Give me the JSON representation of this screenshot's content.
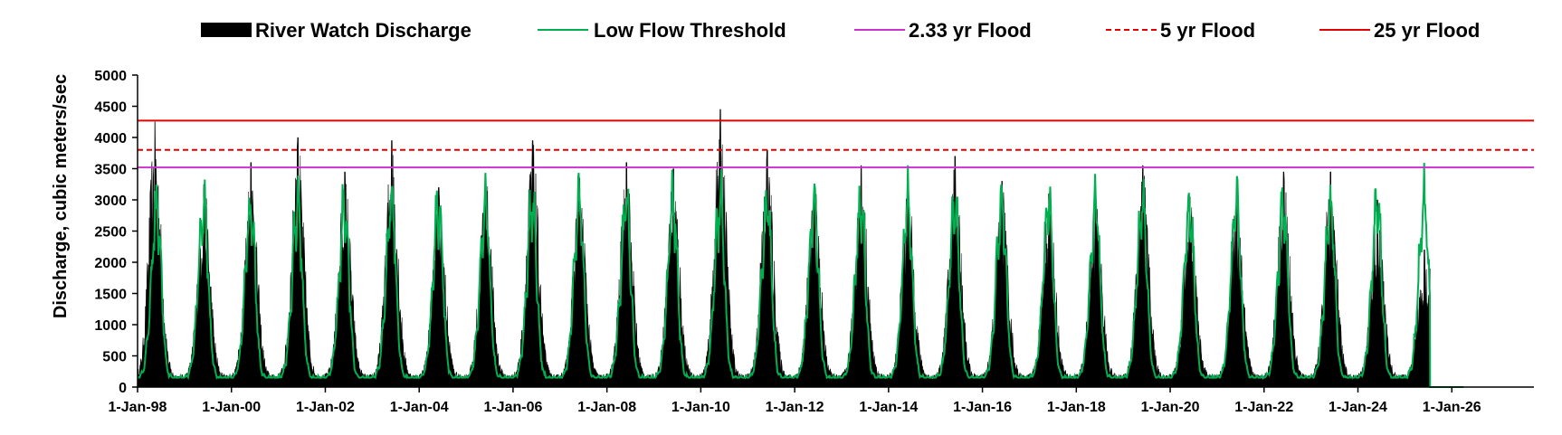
{
  "chart_data": {
    "type": "area",
    "title": "",
    "xlabel": "",
    "ylabel": "Discharge, cubic meters/sec",
    "ylim": [
      0,
      5000
    ],
    "y_ticks": [
      0,
      500,
      1000,
      1500,
      2000,
      2500,
      3000,
      3500,
      4000,
      4500,
      5000
    ],
    "y_tick_labels": [
      "0",
      "500",
      "1000",
      "1500",
      "2000",
      "2500",
      "3000",
      "3500",
      "4000",
      "4500",
      "5000"
    ],
    "xlim": [
      "1998-01-01",
      "2027-10-01"
    ],
    "x_ticks": [
      "1998-01-01",
      "2000-01-01",
      "2002-01-01",
      "2004-01-01",
      "2006-01-01",
      "2008-01-01",
      "2010-01-01",
      "2012-01-01",
      "2014-01-01",
      "2016-01-01",
      "2018-01-01",
      "2020-01-01",
      "2022-01-01",
      "2024-01-01",
      "2026-01-01"
    ],
    "x_tick_labels": [
      "1-Jan-98",
      "1-Jan-00",
      "1-Jan-02",
      "1-Jan-04",
      "1-Jan-06",
      "1-Jan-08",
      "1-Jan-10",
      "1-Jan-12",
      "1-Jan-14",
      "1-Jan-16",
      "1-Jan-18",
      "1-Jan-20",
      "1-Jan-22",
      "1-Jan-24",
      "1-Jan-26"
    ],
    "grid": false,
    "legend_position": "top",
    "series": [
      {
        "name": "River Watch Discharge",
        "kind": "area",
        "color": "#000000",
        "annual_peaks": [
          {
            "x": "1998-05-15",
            "y": 4250
          },
          {
            "x": "1999-06-01",
            "y": 3250
          },
          {
            "x": "2000-06-01",
            "y": 3600
          },
          {
            "x": "2001-06-01",
            "y": 4000
          },
          {
            "x": "2002-06-01",
            "y": 3450
          },
          {
            "x": "2003-06-01",
            "y": 3950
          },
          {
            "x": "2004-06-01",
            "y": 3200
          },
          {
            "x": "2005-06-01",
            "y": 3400
          },
          {
            "x": "2006-06-01",
            "y": 3950
          },
          {
            "x": "2007-06-01",
            "y": 3350
          },
          {
            "x": "2008-06-01",
            "y": 3600
          },
          {
            "x": "2009-06-01",
            "y": 3500
          },
          {
            "x": "2010-06-01",
            "y": 4450
          },
          {
            "x": "2011-06-01",
            "y": 3800
          },
          {
            "x": "2012-06-01",
            "y": 3250
          },
          {
            "x": "2013-06-01",
            "y": 3550
          },
          {
            "x": "2014-06-01",
            "y": 3200
          },
          {
            "x": "2015-06-01",
            "y": 3700
          },
          {
            "x": "2016-06-01",
            "y": 3300
          },
          {
            "x": "2017-06-01",
            "y": 3100
          },
          {
            "x": "2018-06-01",
            "y": 3000
          },
          {
            "x": "2019-06-01",
            "y": 3550
          },
          {
            "x": "2020-06-01",
            "y": 3050
          },
          {
            "x": "2021-06-01",
            "y": 2950
          },
          {
            "x": "2022-06-01",
            "y": 3450
          },
          {
            "x": "2023-06-01",
            "y": 3450
          },
          {
            "x": "2024-06-01",
            "y": 3000
          },
          {
            "x": "2025-06-01",
            "y": 2200
          }
        ],
        "annual_base": 200,
        "end": {
          "x": "2025-07-15",
          "y": 1900
        }
      },
      {
        "name": "Low Flow Threshold",
        "kind": "line",
        "color": "#00b050",
        "annual_pattern": {
          "min": 150,
          "peak": 2900,
          "peak_date": "06-01"
        },
        "end": {
          "x": "2025-07-15",
          "y": 0
        },
        "tail": [
          {
            "x": "2025-07-15",
            "y": 0
          },
          {
            "x": "2026-04-01",
            "y": 0
          }
        ]
      },
      {
        "name": "2.33 yr Flood",
        "kind": "hline",
        "color": "#cc33cc",
        "dash": "solid",
        "y": 3520
      },
      {
        "name": "5 yr Flood",
        "kind": "hline",
        "color": "#e00000",
        "dash": "dashed",
        "y": 3800
      },
      {
        "name": "25 yr Flood",
        "kind": "hline",
        "color": "#e00000",
        "dash": "solid",
        "y": 4270
      }
    ]
  }
}
